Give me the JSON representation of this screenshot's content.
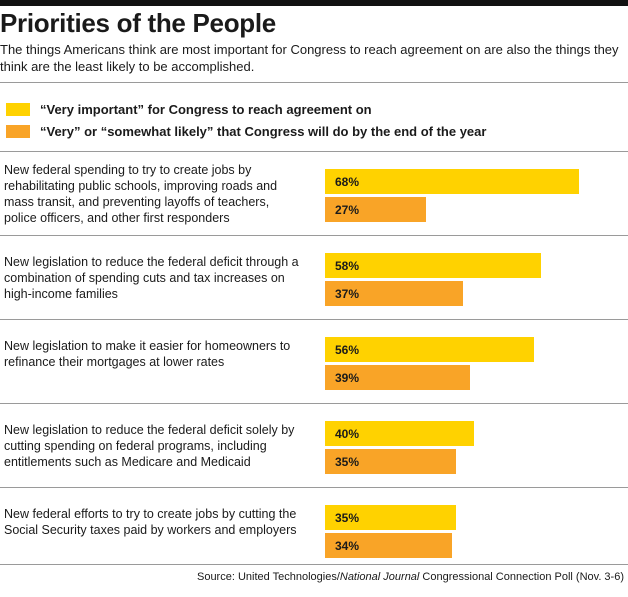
{
  "title": "Priorities of the People",
  "subtitle": "The things Americans think are most important for Congress to reach agreement on are also the things they think are the least likely to be accomplished.",
  "colors": {
    "important": "#ffd200",
    "likely": "#f9a427",
    "rule": "#111111"
  },
  "legend": [
    {
      "label": "“Very important” for Congress to reach agreement on",
      "color": "#ffd200"
    },
    {
      "label": "“Very” or “somewhat likely” that Congress will do by the end of the year",
      "color": "#f9a427"
    }
  ],
  "chart_data": {
    "type": "bar",
    "orientation": "horizontal",
    "categories": [
      "New federal spending to try to create jobs by rehabilitating public schools, improving roads and mass transit, and preventing layoffs of teachers, police officers, and other first responders",
      "New legislation to reduce the federal deficit through a combination of spending cuts and tax increases on high-income families",
      "New legislation to make it easier for homeowners to refinance their mortgages at lower rates",
      "New legislation to reduce the federal deficit solely by cutting spending on federal programs, including entitlements such as Medicare and Medicaid",
      "New federal efforts to try to create jobs by cutting the Social Security taxes paid by workers and employers"
    ],
    "series": [
      {
        "name": "“Very important” for Congress to reach agreement on",
        "values": [
          68,
          58,
          56,
          40,
          35
        ],
        "labels": [
          "68%",
          "58%",
          "56%",
          "40%",
          "35%"
        ]
      },
      {
        "name": "“Very” or “somewhat likely” that Congress will do by the end of the year",
        "values": [
          27,
          37,
          39,
          35,
          34
        ],
        "labels": [
          "27%",
          "37%",
          "39%",
          "35%",
          "34%"
        ]
      }
    ],
    "xlim": [
      0,
      100
    ],
    "legend_position": "top-left"
  },
  "source": {
    "prefix": "Source: United Technologies/",
    "italic": "National Journal",
    "suffix": " Congressional Connection Poll (Nov. 3-6)"
  }
}
